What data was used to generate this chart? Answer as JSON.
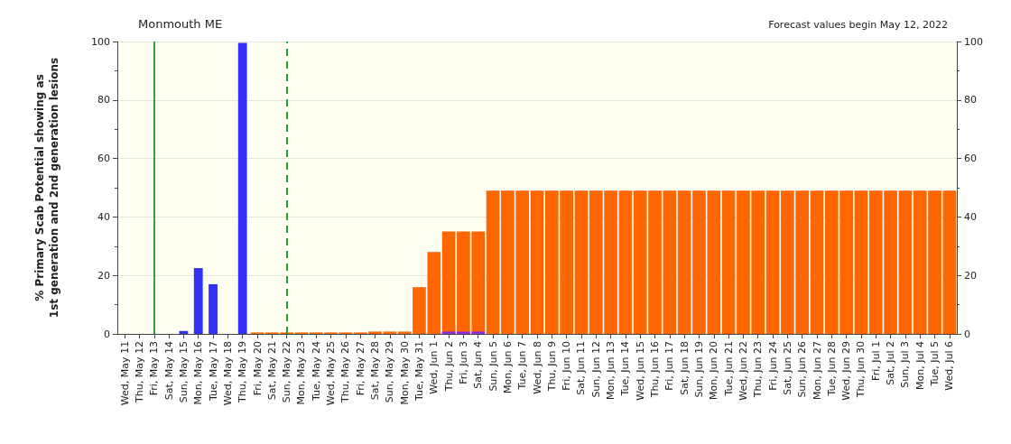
{
  "chart_data": {
    "type": "bar",
    "ylabel": "% Primary Scab Potential showing as\n1st generation and 2nd generation lesions",
    "annotations": [
      "Monmouth ME",
      "Forecast values begin May 12, 2022"
    ],
    "categories": [
      "Wed, May 11",
      "Thu, May 12",
      "Fri, May 13",
      "Sat, May 14",
      "Sun, May 15",
      "Mon, May 16",
      "Tue, May 17",
      "Wed, May 18",
      "Thu, May 19",
      "Fri, May 20",
      "Sat, May 21",
      "Sun, May 22",
      "Mon, May 23",
      "Tue, May 24",
      "Wed, May 25",
      "Thu, May 26",
      "Fri, May 27",
      "Sat, May 28",
      "Sun, May 29",
      "Mon, May 30",
      "Tue, May 31",
      "Wed, Jun 1",
      "Thu, Jun 2",
      "Fri, Jun 3",
      "Sat, Jun 4",
      "Sun, Jun 5",
      "Mon, Jun 6",
      "Tue, Jun 7",
      "Wed, Jun 8",
      "Thu, Jun 9",
      "Fri, Jun 10",
      "Sat, Jun 11",
      "Sun, Jun 12",
      "Mon, Jun 13",
      "Tue, Jun 14",
      "Wed, Jun 15",
      "Thu, Jun 16",
      "Fri, Jun 17",
      "Sat, Jun 18",
      "Sun, Jun 19",
      "Mon, Jun 20",
      "Tue, Jun 21",
      "Wed, Jun 22",
      "Thu, Jun 23",
      "Fri, Jun 24",
      "Sat, Jun 25",
      "Sun, Jun 26",
      "Mon, Jun 27",
      "Tue, Jun 28",
      "Wed, Jun 29",
      "Thu, Jun 30",
      "Fri, Jul 1",
      "Sat, Jul 2",
      "Sun, Jul 3",
      "Mon, Jul 4",
      "Tue, Jul 5",
      "Wed, Jul 6"
    ],
    "series": [
      {
        "color": "#2f2ff5",
        "values": [
          null,
          null,
          null,
          null,
          1,
          22.5,
          17,
          null,
          99.5,
          null,
          null,
          null,
          null,
          null,
          null,
          null,
          null,
          null,
          null,
          null,
          null,
          null,
          null,
          null,
          null,
          null,
          null,
          null,
          null,
          null,
          null,
          null,
          null,
          null,
          null,
          null,
          null,
          null,
          null,
          null,
          null,
          null,
          null,
          null,
          null,
          null,
          null,
          null,
          null,
          null,
          null,
          null,
          null,
          null,
          null,
          null,
          null
        ]
      },
      {
        "color": "#ff6600",
        "values": [
          null,
          null,
          null,
          null,
          null,
          null,
          null,
          null,
          null,
          0.5,
          0.5,
          0.5,
          0.5,
          0.5,
          0.5,
          0.5,
          0.5,
          0.8,
          0.8,
          0.8,
          16,
          28,
          35,
          35,
          35,
          49,
          49,
          49,
          49,
          49,
          49,
          49,
          49,
          49,
          49,
          49,
          49,
          49,
          49,
          49,
          49,
          49,
          49,
          49,
          49,
          49,
          49,
          49,
          49,
          49,
          49,
          49,
          49,
          49,
          49,
          49,
          49
        ]
      },
      {
        "color": "#8a2be2",
        "values": [
          null,
          null,
          null,
          null,
          null,
          null,
          null,
          null,
          null,
          null,
          null,
          null,
          null,
          null,
          null,
          null,
          null,
          null,
          null,
          null,
          null,
          null,
          0.8,
          0.8,
          0.8,
          null,
          null,
          null,
          null,
          null,
          null,
          null,
          null,
          null,
          null,
          null,
          null,
          null,
          null,
          null,
          null,
          null,
          null,
          null,
          null,
          null,
          null,
          null,
          null,
          null,
          null,
          null,
          null,
          null,
          null,
          null,
          null
        ]
      }
    ],
    "ylim": [
      0,
      100
    ],
    "yticks": [
      0,
      20,
      40,
      60,
      80,
      100
    ],
    "y2lim": [
      0,
      100
    ],
    "y2ticks": [
      0,
      20,
      40,
      60,
      80,
      100
    ],
    "grid": "y",
    "ref_lines": [
      {
        "axis": "x",
        "value": "Fri, May 13",
        "color": "#2e9e3e",
        "line_style": "solid"
      },
      {
        "axis": "x",
        "value": "Sun, May 22",
        "color": "#2e9e3e",
        "line_style": "dashed"
      }
    ]
  }
}
